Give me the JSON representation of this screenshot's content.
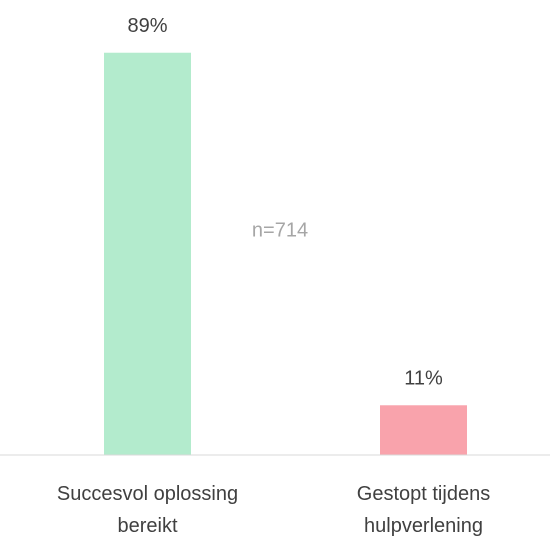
{
  "chart_data": {
    "type": "bar",
    "categories": [
      "Succesvol oplossing bereikt",
      "Gestopt tijdens hulpverlening"
    ],
    "values": [
      89,
      11
    ],
    "value_labels": [
      "89%",
      "11%"
    ],
    "colors": [
      "#b3ebcd",
      "#f9a3ac"
    ],
    "annotation": "n=714",
    "ylim": [
      0,
      100
    ]
  }
}
